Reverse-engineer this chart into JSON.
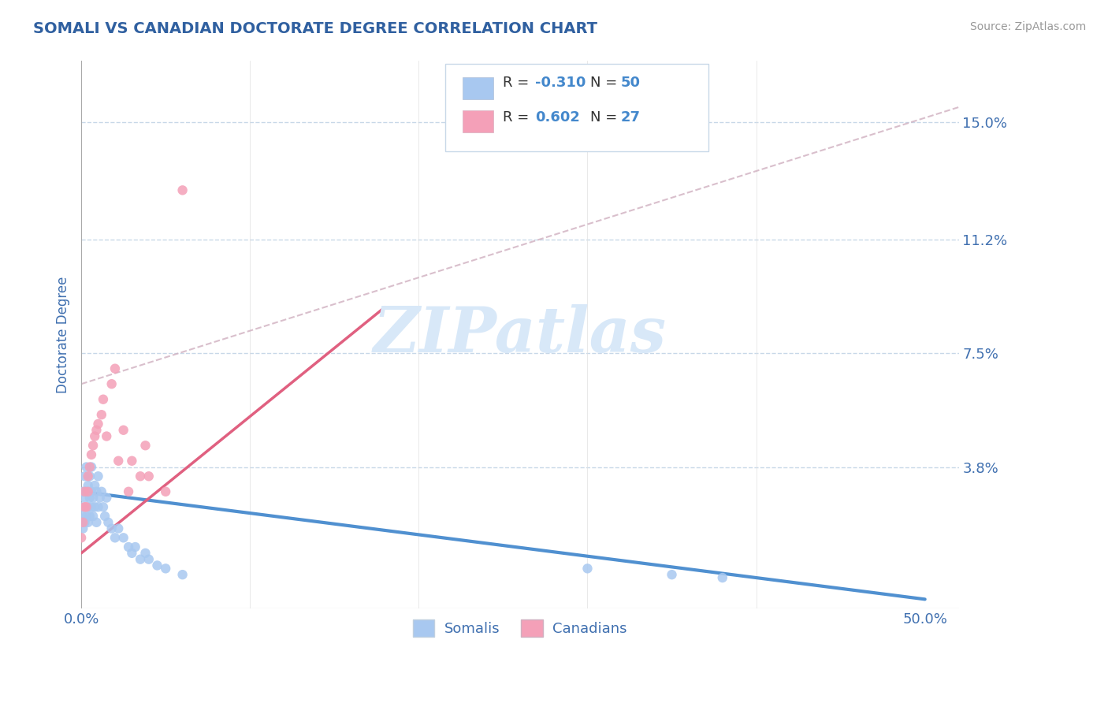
{
  "title": "SOMALI VS CANADIAN DOCTORATE DEGREE CORRELATION CHART",
  "source": "Source: ZipAtlas.com",
  "ylabel": "Doctorate Degree",
  "y_tick_values": [
    0.038,
    0.075,
    0.112,
    0.15
  ],
  "y_tick_labels": [
    "3.8%",
    "7.5%",
    "11.2%",
    "15.0%"
  ],
  "x_tick_values": [
    0.0,
    0.5
  ],
  "x_tick_labels": [
    "0.0%",
    "50.0%"
  ],
  "xlim": [
    0.0,
    0.52
  ],
  "ylim": [
    -0.008,
    0.17
  ],
  "somali_color": "#a8c8f0",
  "canadian_color": "#f4a0b8",
  "trendline_somali_color": "#5090d0",
  "trendline_canadian_color": "#e06080",
  "ref_line_color": "#d0b0c0",
  "watermark_color": "#d8e8f8",
  "title_color": "#3060a0",
  "tick_color": "#4070b0",
  "background_color": "#ffffff",
  "grid_color": "#c8d8e8",
  "watermark": "ZIPatlas",
  "legend_r1": "R = -0.310",
  "legend_n1": "N = 50",
  "legend_r2": "R =  0.602",
  "legend_n2": "N = 27",
  "somali_x": [
    0.0,
    0.0,
    0.001,
    0.001,
    0.001,
    0.002,
    0.002,
    0.002,
    0.003,
    0.003,
    0.003,
    0.004,
    0.004,
    0.004,
    0.005,
    0.005,
    0.005,
    0.006,
    0.006,
    0.006,
    0.007,
    0.007,
    0.008,
    0.008,
    0.009,
    0.009,
    0.01,
    0.01,
    0.011,
    0.012,
    0.013,
    0.014,
    0.015,
    0.016,
    0.018,
    0.02,
    0.022,
    0.025,
    0.028,
    0.03,
    0.032,
    0.035,
    0.038,
    0.04,
    0.045,
    0.05,
    0.06,
    0.3,
    0.35,
    0.38
  ],
  "somali_y": [
    0.02,
    0.025,
    0.018,
    0.022,
    0.03,
    0.02,
    0.028,
    0.035,
    0.022,
    0.03,
    0.038,
    0.02,
    0.025,
    0.032,
    0.022,
    0.028,
    0.035,
    0.025,
    0.03,
    0.038,
    0.022,
    0.028,
    0.025,
    0.032,
    0.02,
    0.03,
    0.025,
    0.035,
    0.028,
    0.03,
    0.025,
    0.022,
    0.028,
    0.02,
    0.018,
    0.015,
    0.018,
    0.015,
    0.012,
    0.01,
    0.012,
    0.008,
    0.01,
    0.008,
    0.006,
    0.005,
    0.003,
    0.005,
    0.003,
    0.002
  ],
  "canadian_x": [
    0.0,
    0.001,
    0.002,
    0.002,
    0.003,
    0.004,
    0.004,
    0.005,
    0.006,
    0.007,
    0.008,
    0.009,
    0.01,
    0.012,
    0.013,
    0.015,
    0.018,
    0.02,
    0.022,
    0.025,
    0.028,
    0.03,
    0.035,
    0.038,
    0.04,
    0.05,
    0.06
  ],
  "canadian_y": [
    0.015,
    0.02,
    0.025,
    0.03,
    0.025,
    0.03,
    0.035,
    0.038,
    0.042,
    0.045,
    0.048,
    0.05,
    0.052,
    0.055,
    0.06,
    0.048,
    0.065,
    0.07,
    0.04,
    0.05,
    0.03,
    0.04,
    0.035,
    0.045,
    0.035,
    0.03,
    0.128
  ],
  "trendline_somali_x0": 0.0,
  "trendline_somali_y0": 0.03,
  "trendline_somali_x1": 0.5,
  "trendline_somali_y1": -0.005,
  "trendline_canadian_x0": 0.0,
  "trendline_canadian_y0": 0.01,
  "trendline_canadian_x1": 0.18,
  "trendline_canadian_y1": 0.09,
  "ref_line_x0": 0.0,
  "ref_line_y0": 0.065,
  "ref_line_x1": 0.52,
  "ref_line_y1": 0.155
}
